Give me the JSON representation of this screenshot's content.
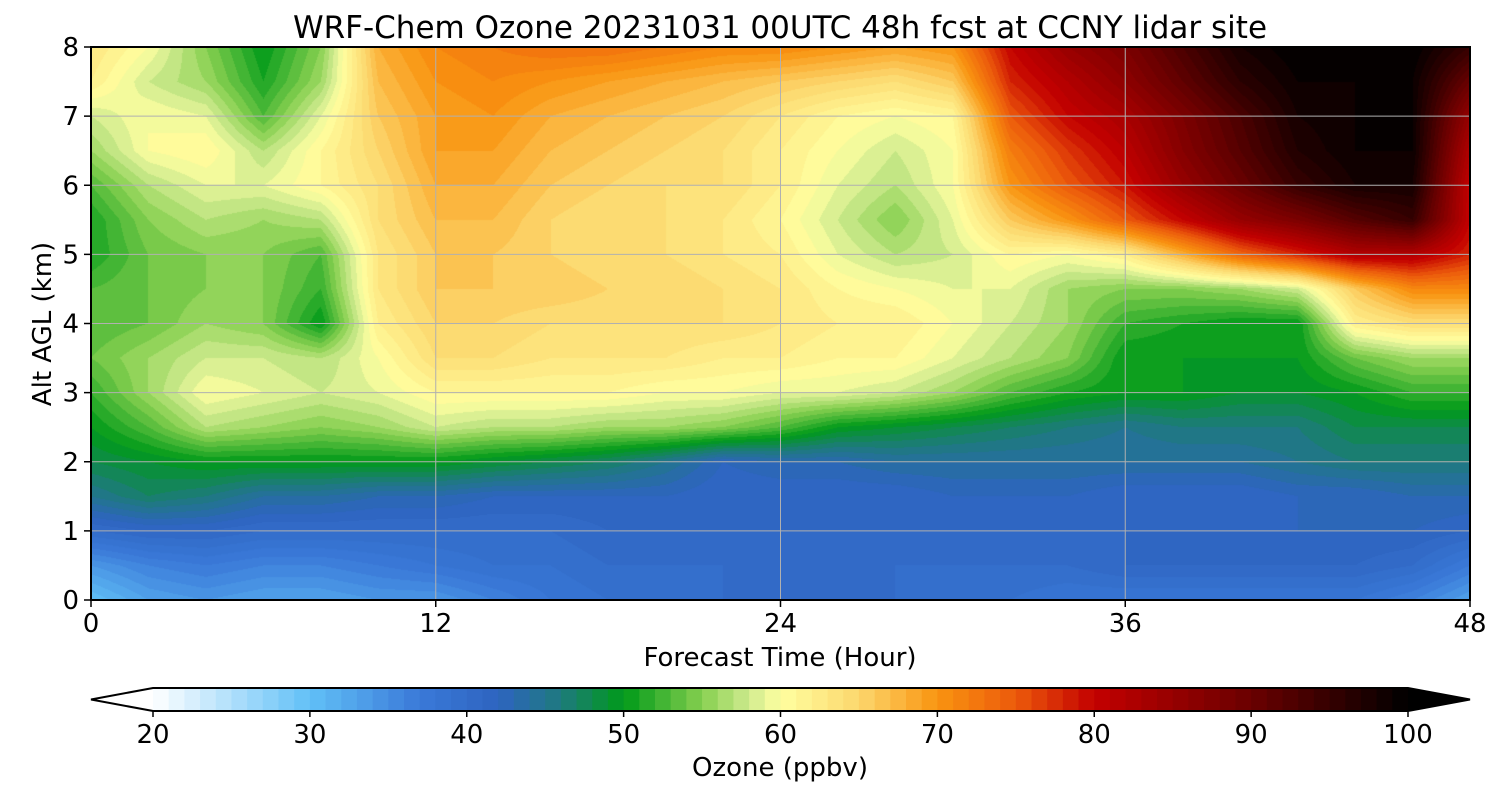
{
  "chart_data": {
    "type": "heatmap",
    "title": "WRF-Chem Ozone  20231031 00UTC 48h fcst at CCNY lidar site",
    "xlabel": "Forecast Time (Hour)",
    "ylabel": "Alt AGL (km)",
    "xlim": [
      0,
      48
    ],
    "ylim": [
      0,
      8
    ],
    "xticks": [
      0,
      12,
      24,
      36,
      48
    ],
    "yticks": [
      0,
      1,
      2,
      3,
      4,
      5,
      6,
      7,
      8
    ],
    "grid": true,
    "colorbar": {
      "label": "Ozone  (ppbv)",
      "range": [
        20,
        100
      ],
      "ticks": [
        20,
        30,
        40,
        50,
        60,
        70,
        80,
        90,
        100
      ],
      "extend": "both",
      "stops": [
        {
          "v": 20,
          "c": "#ffffff"
        },
        {
          "v": 30,
          "c": "#61c0f7"
        },
        {
          "v": 37,
          "c": "#3a79d8"
        },
        {
          "v": 42,
          "c": "#2e64c0"
        },
        {
          "v": 46,
          "c": "#1e7a7e"
        },
        {
          "v": 50,
          "c": "#009a19"
        },
        {
          "v": 55,
          "c": "#86cf4f"
        },
        {
          "v": 58,
          "c": "#cfeb8e"
        },
        {
          "v": 60,
          "c": "#ffffa0"
        },
        {
          "v": 65,
          "c": "#fcd76d"
        },
        {
          "v": 70,
          "c": "#f99410"
        },
        {
          "v": 75,
          "c": "#ec5a0b"
        },
        {
          "v": 80,
          "c": "#c30000"
        },
        {
          "v": 90,
          "c": "#6a0000"
        },
        {
          "v": 100,
          "c": "#000000"
        }
      ]
    },
    "grid_data": {
      "x": [
        0,
        2,
        4,
        6,
        8,
        10,
        12,
        14,
        16,
        18,
        20,
        22,
        24,
        26,
        28,
        30,
        32,
        34,
        36,
        38,
        40,
        42,
        44,
        46,
        48
      ],
      "y": [
        0,
        0.5,
        1,
        1.5,
        2,
        2.5,
        3,
        3.5,
        4,
        4.5,
        5,
        5.5,
        6,
        6.5,
        7,
        7.5,
        8
      ],
      "values": [
        [
          30,
          33,
          34,
          33,
          33,
          34,
          34,
          36,
          38,
          39,
          39,
          40,
          40,
          40,
          40,
          39,
          39,
          38,
          38,
          38,
          38,
          38,
          38,
          36,
          33
        ],
        [
          34,
          36,
          37,
          36,
          36,
          37,
          38,
          39,
          39,
          40,
          40,
          40,
          40,
          40,
          40,
          40,
          40,
          40,
          41,
          41,
          41,
          41,
          41,
          40,
          37
        ],
        [
          40,
          41,
          41,
          40,
          40,
          40,
          40,
          40,
          40,
          41,
          41,
          41,
          41,
          41,
          41,
          41,
          41,
          41,
          41,
          41,
          42,
          42,
          42,
          42,
          41
        ],
        [
          45,
          47,
          46,
          44,
          44,
          43,
          43,
          42,
          42,
          42,
          42,
          41,
          41,
          41,
          41,
          42,
          42,
          42,
          41,
          41,
          41,
          42,
          42,
          43,
          43
        ],
        [
          48,
          49,
          50,
          50,
          50,
          50,
          50,
          49,
          48,
          47,
          45,
          42,
          43,
          43,
          44,
          44,
          44,
          44,
          44,
          44,
          44,
          45,
          46,
          46,
          46
        ],
        [
          50,
          53,
          57,
          56,
          55,
          56,
          58,
          57,
          57,
          56,
          56,
          55,
          53,
          50,
          49,
          48,
          47,
          46,
          45,
          46,
          46,
          46,
          48,
          48,
          48
        ],
        [
          52,
          56,
          60,
          59,
          58,
          59,
          61,
          61,
          61,
          61,
          60,
          60,
          59,
          59,
          58,
          56,
          53,
          51,
          50,
          50,
          49,
          49,
          50,
          52,
          52
        ],
        [
          54,
          56,
          58,
          58,
          57,
          60,
          64,
          64,
          63,
          63,
          63,
          62,
          62,
          61,
          61,
          59,
          57,
          55,
          50,
          50,
          50,
          50,
          54,
          56,
          56
        ],
        [
          53,
          54,
          56,
          55,
          50,
          62,
          65,
          65,
          64,
          64,
          64,
          64,
          63,
          62,
          62,
          60,
          58,
          56,
          52,
          51,
          50,
          50,
          62,
          64,
          64
        ],
        [
          53,
          54,
          55,
          55,
          52,
          63,
          66,
          66,
          66,
          65,
          65,
          64,
          63,
          61,
          60,
          59,
          59,
          56,
          55,
          55,
          56,
          58,
          66,
          71,
          71
        ],
        [
          51,
          54,
          55,
          55,
          53,
          63,
          66,
          66,
          65,
          64,
          64,
          63,
          62,
          59,
          57,
          58,
          61,
          60,
          62,
          68,
          74,
          78,
          82,
          82,
          78
        ],
        [
          51,
          55,
          57,
          56,
          57,
          64,
          67,
          67,
          65,
          64,
          64,
          63,
          61,
          58,
          55,
          59,
          66,
          70,
          75,
          80,
          85,
          88,
          92,
          95,
          80
        ],
        [
          53,
          57,
          59,
          59,
          61,
          64,
          68,
          68,
          66,
          65,
          64,
          64,
          62,
          59,
          57,
          60,
          70,
          75,
          79,
          85,
          90,
          95,
          98,
          98,
          80
        ],
        [
          56,
          60,
          61,
          57,
          61,
          65,
          69,
          69,
          67,
          66,
          65,
          64,
          62,
          60,
          58,
          60,
          72,
          77,
          81,
          87,
          92,
          97,
          99,
          99,
          82
        ],
        [
          58,
          60,
          59,
          53,
          59,
          66,
          69,
          70,
          68,
          67,
          66,
          65,
          63,
          61,
          60,
          61,
          75,
          80,
          83,
          88,
          93,
          98,
          99,
          99,
          85
        ],
        [
          62,
          58,
          56,
          51,
          56,
          67,
          70,
          71,
          70,
          69,
          68,
          67,
          66,
          65,
          64,
          66,
          78,
          82,
          86,
          91,
          96,
          99,
          99,
          99,
          90
        ],
        [
          63,
          60,
          55,
          50,
          55,
          68,
          71,
          72,
          73,
          73,
          72,
          71,
          71,
          70,
          69,
          70,
          80,
          85,
          88,
          93,
          98,
          100,
          100,
          100,
          95
        ]
      ]
    }
  }
}
